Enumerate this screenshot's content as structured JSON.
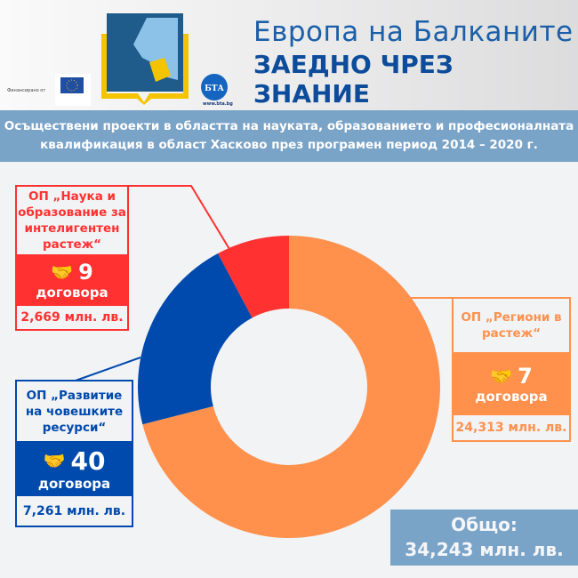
{
  "header": {
    "title_line1": "Европа на Балканите",
    "title_line2": "ЗАЕДНО ЧРЕЗ ЗНАНИЕ",
    "funded_by": "Финансирано от",
    "bta_logo_text": "БТА",
    "bta_url": "www.bta.bg"
  },
  "banner": {
    "text": "Осъществени проекти в областта на науката, образованието и професионалната квалификация в област Хасково през програмен период 2014 – 2020 г."
  },
  "colors": {
    "orange": "#ff914d",
    "blue": "#004aad",
    "red": "#ff3131",
    "banner": "#7aa3c8"
  },
  "chart_data": {
    "type": "pie",
    "donut": true,
    "title": "",
    "categories": [
      "ОП „Региони в растеж“",
      "ОП „Развитие на човешките ресурси“",
      "ОП „Наука и образование за интелигентен растеж“"
    ],
    "values": [
      24.313,
      7.261,
      2.669
    ],
    "unit": "млн. лв.",
    "contracts": [
      7,
      40,
      9
    ],
    "colors": [
      "#ff914d",
      "#004aad",
      "#ff3131"
    ]
  },
  "callouts": {
    "red": {
      "title": "ОП „Наука и образование за интелигентен растеж“",
      "count": "9",
      "count_label": "договора",
      "amount": "2,669 млн. лв.",
      "icon": "handshake-icon"
    },
    "blue": {
      "title": "ОП „Развитие на човешките ресурси“",
      "count": "40",
      "count_label": "договора",
      "amount": "7,261 млн. лв.",
      "icon": "handshake-icon"
    },
    "orange": {
      "title": "ОП „Региони в растеж“",
      "count": "7",
      "count_label": "договора",
      "amount": "24,313 млн. лв.",
      "icon": "handshake-icon"
    }
  },
  "total": {
    "label": "Общо:",
    "value": "34,243 млн. лв."
  }
}
